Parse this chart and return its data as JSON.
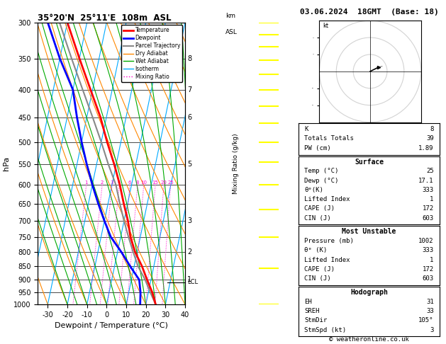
{
  "title_left": "35°20'N  25°11'E  108m  ASL",
  "title_right": "03.06.2024  18GMT  (Base: 18)",
  "xlabel": "Dewpoint / Temperature (°C)",
  "ylabel_left": "hPa",
  "pressure_levels": [
    300,
    350,
    400,
    450,
    500,
    550,
    600,
    650,
    700,
    750,
    800,
    850,
    900,
    950,
    1000
  ],
  "temp_range": [
    -35,
    40
  ],
  "background_color": "#ffffff",
  "plot_bg": "#ffffff",
  "isotherm_color": "#00aaff",
  "dry_adiabat_color": "#ff8800",
  "wet_adiabat_color": "#00aa00",
  "mixing_ratio_color": "#ff00cc",
  "temp_color": "#ff0000",
  "dewp_color": "#0000ff",
  "parcel_color": "#888888",
  "grid_color": "#000000",
  "lcl_pressure": 910,
  "font_color": "#000000",
  "copyright": "© weatheronline.co.uk",
  "stats": {
    "K": 8,
    "Totals_Totals": 39,
    "PW_cm": 1.89,
    "Surface_Temp": 25,
    "Surface_Dewp": 17.1,
    "Surface_Theta_e": 333,
    "Surface_LI": 1,
    "Surface_CAPE": 172,
    "Surface_CIN": 603,
    "MU_Pressure": 1002,
    "MU_Theta_e": 333,
    "MU_LI": 1,
    "MU_CAPE": 172,
    "MU_CIN": 603,
    "Hodo_EH": 31,
    "Hodo_SREH": 33,
    "Hodo_StmDir": 105,
    "Hodo_StmSpd": 3
  },
  "temp_profile": {
    "pressure": [
      1000,
      950,
      900,
      850,
      800,
      750,
      700,
      650,
      600,
      550,
      500,
      450,
      400,
      350,
      300
    ],
    "temp": [
      25,
      22,
      18,
      14,
      9,
      5,
      2,
      -2,
      -6,
      -11,
      -17,
      -23,
      -31,
      -40,
      -50
    ]
  },
  "dewp_profile": {
    "pressure": [
      1000,
      950,
      900,
      850,
      800,
      750,
      700,
      650,
      600,
      550,
      500,
      450,
      400,
      350,
      300
    ],
    "temp": [
      17.1,
      16,
      14,
      8,
      2,
      -5,
      -10,
      -15,
      -20,
      -25,
      -30,
      -35,
      -40,
      -50,
      -60
    ]
  },
  "parcel_profile": {
    "pressure": [
      1000,
      950,
      900,
      850,
      800,
      750,
      700,
      650,
      600,
      550,
      500,
      450,
      400,
      350,
      300
    ],
    "temp": [
      25,
      21,
      17,
      12,
      8,
      4,
      0,
      -4,
      -8,
      -14,
      -20,
      -27,
      -35,
      -44,
      -54
    ]
  },
  "mixing_ratio_values": [
    1,
    2,
    3,
    4,
    6,
    8,
    10,
    15,
    20,
    25
  ],
  "km_labels": [
    [
      350,
      "8"
    ],
    [
      400,
      "7"
    ],
    [
      450,
      "6"
    ],
    [
      500,
      ""
    ],
    [
      550,
      "5"
    ],
    [
      600,
      ""
    ],
    [
      700,
      "3"
    ],
    [
      750,
      ""
    ],
    [
      800,
      "2"
    ],
    [
      850,
      ""
    ],
    [
      900,
      "1"
    ],
    [
      950,
      ""
    ]
  ],
  "hodo_circles": [
    10,
    20,
    30
  ],
  "hodo_trace_u": [
    0,
    1,
    2,
    3,
    4,
    5
  ],
  "hodo_trace_v": [
    0,
    0.5,
    1,
    1.5,
    2,
    2.5
  ]
}
